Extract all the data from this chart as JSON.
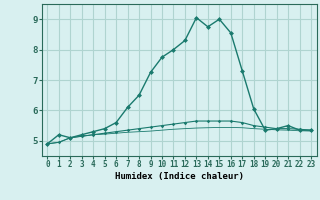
{
  "xlabel": "Humidex (Indice chaleur)",
  "bg_color": "#d8f0f0",
  "grid_color": "#afd4d0",
  "line_color": "#1a7a6e",
  "x": [
    0,
    1,
    2,
    3,
    4,
    5,
    6,
    7,
    8,
    9,
    10,
    11,
    12,
    13,
    14,
    15,
    16,
    17,
    18,
    19,
    20,
    21,
    22,
    23
  ],
  "line1": [
    4.9,
    5.2,
    5.1,
    5.2,
    5.3,
    5.4,
    5.6,
    6.1,
    6.5,
    7.25,
    7.75,
    8.0,
    8.3,
    9.05,
    8.75,
    9.0,
    8.55,
    7.3,
    6.05,
    5.35,
    5.4,
    5.5,
    5.35,
    5.35
  ],
  "line2": [
    4.9,
    4.95,
    5.1,
    5.15,
    5.2,
    5.25,
    5.3,
    5.35,
    5.4,
    5.45,
    5.5,
    5.55,
    5.6,
    5.65,
    5.65,
    5.65,
    5.65,
    5.6,
    5.5,
    5.45,
    5.4,
    5.4,
    5.38,
    5.35
  ],
  "line3": [
    4.9,
    4.95,
    5.1,
    5.15,
    5.2,
    5.22,
    5.25,
    5.28,
    5.3,
    5.32,
    5.35,
    5.38,
    5.4,
    5.42,
    5.43,
    5.44,
    5.44,
    5.43,
    5.4,
    5.38,
    5.36,
    5.35,
    5.33,
    5.32
  ],
  "ylim": [
    4.5,
    9.5
  ],
  "yticks": [
    5,
    6,
    7,
    8,
    9
  ],
  "xtick_labels": [
    "0",
    "1",
    "2",
    "3",
    "4",
    "5",
    "6",
    "7",
    "8",
    "9",
    "10",
    "11",
    "12",
    "13",
    "14",
    "15",
    "16",
    "17",
    "18",
    "19",
    "20",
    "21",
    "22",
    "23"
  ],
  "spine_color": "#2a6a5a",
  "tick_fontsize": 5.5,
  "xlabel_fontsize": 6.5,
  "ylabel_fontsize": 6.5
}
